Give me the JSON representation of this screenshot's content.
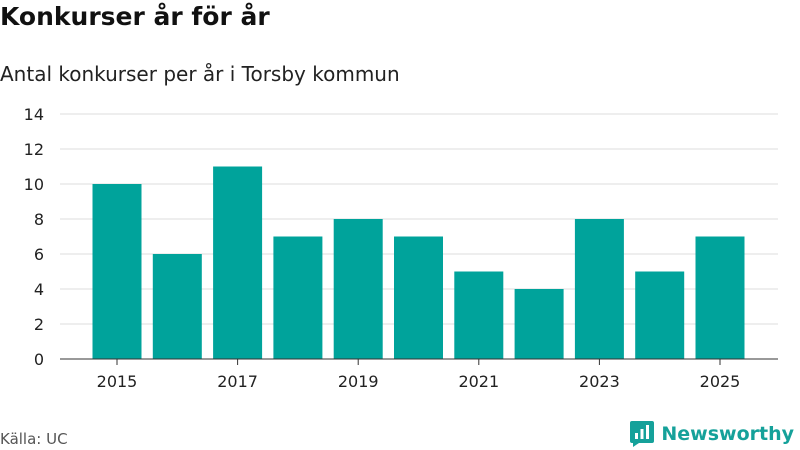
{
  "header": {
    "title": "Konkurser år för år",
    "subtitle": "Antal konkurser per år i Torsby kommun"
  },
  "footer": {
    "source": "Källa: UC",
    "brand": "Newsworthy",
    "brand_icon": "newsworthy-logo-icon"
  },
  "colors": {
    "bar": "#00a39b",
    "grid": "#dddddd",
    "axis": "#333333",
    "brand": "#15a19a"
  },
  "chart_data": {
    "type": "bar",
    "title": "Konkurser år för år",
    "subtitle": "Antal konkurser per år i Torsby kommun",
    "xlabel": "",
    "ylabel": "",
    "categories": [
      "2015",
      "2016",
      "2017",
      "2018",
      "2019",
      "2020",
      "2021",
      "2022",
      "2023",
      "2024",
      "2025"
    ],
    "values": [
      10,
      6,
      11,
      7,
      8,
      7,
      5,
      4,
      8,
      5,
      7
    ],
    "ylim": [
      0,
      14
    ],
    "yticks": [
      0,
      2,
      4,
      6,
      8,
      10,
      12,
      14
    ],
    "xtick_labels": [
      "2015",
      "2017",
      "2019",
      "2021",
      "2023",
      "2025"
    ],
    "grid": true,
    "legend": "none"
  }
}
